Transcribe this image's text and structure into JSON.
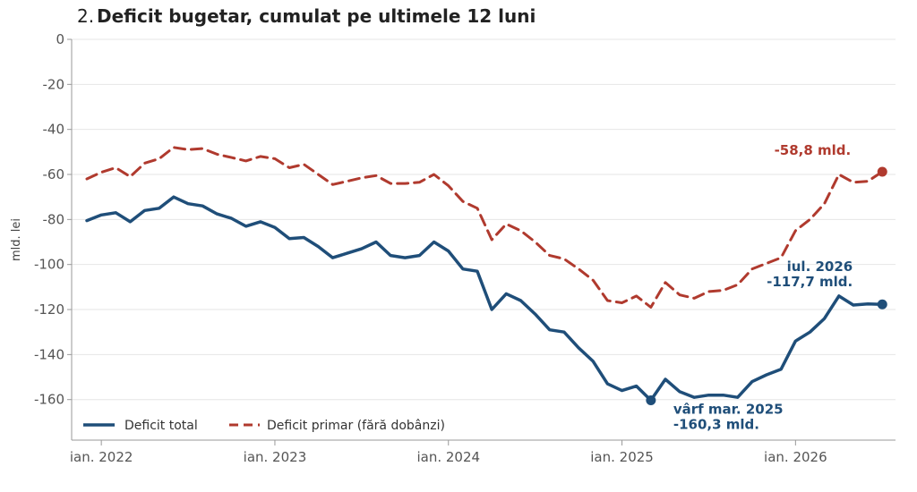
{
  "chart_data": {
    "type": "line",
    "title_number": "2.",
    "title": "Deficit bugetar, cumulat pe ultimele 12 luni",
    "xlabel": "",
    "ylabel": "mld. lei",
    "ylim": [
      -178,
      0
    ],
    "yticks": [
      0,
      -20,
      -40,
      -60,
      -80,
      -100,
      -120,
      -140,
      -160
    ],
    "ytick_labels": [
      "0",
      "-20",
      "-40",
      "-60",
      "-80",
      "-100",
      "-120",
      "-140",
      "-160"
    ],
    "xticks": [
      {
        "value": "2022-01",
        "label": "ian. 2022"
      },
      {
        "value": "2023-01",
        "label": "ian. 2023"
      },
      {
        "value": "2024-01",
        "label": "ian. 2024"
      },
      {
        "value": "2025-01",
        "label": "ian. 2025"
      },
      {
        "value": "2026-01",
        "label": "ian. 2026"
      }
    ],
    "grid": true,
    "legend_position": "bottom-left",
    "x": [
      "2021-12",
      "2022-01",
      "2022-02",
      "2022-03",
      "2022-04",
      "2022-05",
      "2022-06",
      "2022-07",
      "2022-08",
      "2022-09",
      "2022-10",
      "2022-11",
      "2022-12",
      "2023-01",
      "2023-02",
      "2023-03",
      "2023-04",
      "2023-05",
      "2023-06",
      "2023-07",
      "2023-08",
      "2023-09",
      "2023-10",
      "2023-11",
      "2023-12",
      "2024-01",
      "2024-02",
      "2024-03",
      "2024-04",
      "2024-05",
      "2024-06",
      "2024-07",
      "2024-08",
      "2024-09",
      "2024-10",
      "2024-11",
      "2024-12",
      "2025-01",
      "2025-02",
      "2025-03",
      "2025-04",
      "2025-05",
      "2025-06",
      "2025-07",
      "2025-08",
      "2025-09",
      "2025-10",
      "2025-11",
      "2025-12",
      "2026-01",
      "2026-02",
      "2026-03",
      "2026-04",
      "2026-05",
      "2026-06",
      "2026-07"
    ],
    "series": [
      {
        "name": "Deficit total",
        "color": "#1f4e79",
        "style": "solid",
        "values": [
          -80.5,
          -78,
          -77,
          -81,
          -76,
          -75,
          -70,
          -73,
          -74,
          -77.5,
          -79.5,
          -83,
          -81,
          -83.5,
          -88.5,
          -88,
          -92,
          -97,
          -95,
          -93,
          -90,
          -96,
          -97,
          -96,
          -90,
          -94,
          -102,
          -103,
          -120,
          -113,
          -116,
          -122,
          -129,
          -130,
          -137,
          -143,
          -153,
          -156,
          -154,
          -160.3,
          -151,
          -156.5,
          -159,
          -158,
          -158,
          -159,
          -152,
          -149,
          -146.5,
          -134,
          -130,
          -124,
          -114,
          -118,
          -117.5,
          -117.7
        ]
      },
      {
        "name": "Deficit primar (fără dobânzi)",
        "color": "#b03a2e",
        "style": "dashed",
        "values": [
          -62,
          -59,
          -57,
          -61,
          -55,
          -53,
          -48,
          -49,
          -48.5,
          -51,
          -52.5,
          -54,
          -52,
          -53,
          -57,
          -55.5,
          -60,
          -64.5,
          -63,
          -61.5,
          -60.5,
          -64,
          -64,
          -63.5,
          -60,
          -65,
          -72,
          -75,
          -89,
          -82,
          -85,
          -90,
          -96,
          -97.5,
          -102,
          -107,
          -116,
          -117,
          -114,
          -119,
          -108,
          -113.5,
          -115,
          -112,
          -111.5,
          -109,
          -102,
          -99.5,
          -97,
          -85,
          -80,
          -73,
          -60,
          -63.5,
          -63,
          -58.8
        ]
      }
    ],
    "annotations": [
      {
        "id": "primary_end",
        "lines": [
          "-58,8 mld."
        ],
        "color": "#b03a2e",
        "x": "2026-07",
        "y": -58.8
      },
      {
        "id": "total_end",
        "lines": [
          "iul. 2026",
          "-117,7 mld."
        ],
        "color": "#1f4e79",
        "x": "2026-07",
        "y": -117.7
      },
      {
        "id": "total_peak",
        "lines": [
          "vârf mar. 2025",
          "-160,3 mld."
        ],
        "color": "#1f4e79",
        "x": "2025-03",
        "y": -160.3
      }
    ]
  }
}
